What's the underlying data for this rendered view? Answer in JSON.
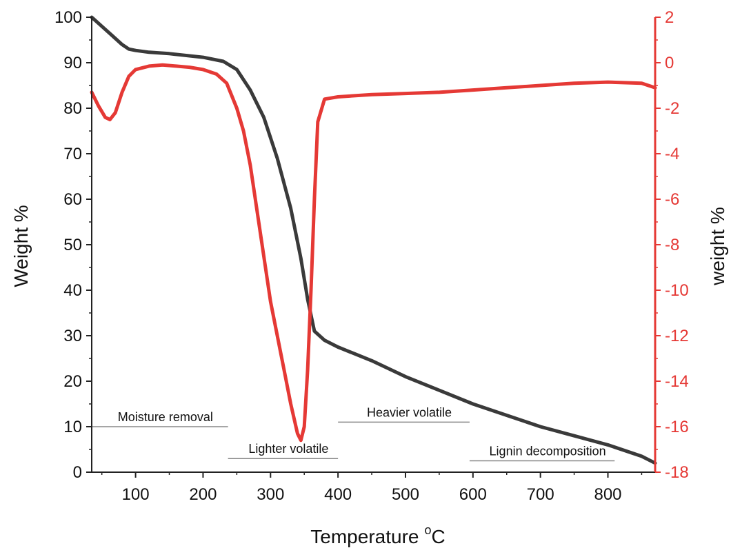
{
  "chart_data": {
    "type": "line",
    "xlabel": "Temperature",
    "xlabel_superscript": "o",
    "xlabel_unit": "C",
    "ylabel": "Weight %",
    "y2label": "weight %",
    "xlim": [
      35,
      870
    ],
    "ylim": [
      0,
      100
    ],
    "y2lim": [
      -18,
      2
    ],
    "xticks": [
      100,
      200,
      300,
      400,
      500,
      600,
      700,
      800
    ],
    "yticks": [
      0,
      10,
      20,
      30,
      40,
      50,
      60,
      70,
      80,
      90,
      100
    ],
    "y2ticks": [
      -18,
      -16,
      -14,
      -12,
      -10,
      -8,
      -6,
      -4,
      -2,
      0,
      2
    ],
    "grid": false,
    "colors": {
      "tg": "#3a3a3a",
      "dtg": "#e53935",
      "axis_right": "#e53935",
      "annotation_line": "#888888"
    },
    "series": [
      {
        "axis": "left",
        "x": [
          35,
          50,
          65,
          80,
          90,
          100,
          120,
          150,
          200,
          230,
          250,
          270,
          290,
          310,
          330,
          345,
          355,
          365,
          380,
          400,
          450,
          500,
          550,
          600,
          650,
          700,
          750,
          800,
          850,
          870
        ],
        "values": [
          100,
          98,
          96,
          94,
          93,
          92.7,
          92.3,
          92,
          91.2,
          90.3,
          88.5,
          84,
          78,
          69,
          58,
          47,
          38,
          31,
          29,
          27.5,
          24.5,
          21,
          18,
          15,
          12.5,
          10,
          8,
          6,
          3.5,
          2
        ]
      },
      {
        "axis": "right",
        "x": [
          35,
          45,
          55,
          62,
          70,
          80,
          90,
          100,
          120,
          140,
          160,
          180,
          200,
          220,
          235,
          250,
          260,
          270,
          280,
          290,
          300,
          310,
          320,
          330,
          340,
          345,
          350,
          355,
          360,
          365,
          370,
          380,
          400,
          450,
          500,
          550,
          600,
          650,
          700,
          750,
          800,
          850,
          870
        ],
        "values": [
          -1.3,
          -1.9,
          -2.4,
          -2.5,
          -2.2,
          -1.3,
          -0.6,
          -0.3,
          -0.15,
          -0.1,
          -0.15,
          -0.2,
          -0.3,
          -0.5,
          -0.9,
          -2.0,
          -3.0,
          -4.5,
          -6.5,
          -8.5,
          -10.5,
          -12.0,
          -13.5,
          -15.0,
          -16.3,
          -16.6,
          -16.0,
          -13.5,
          -10.0,
          -6.0,
          -2.6,
          -1.6,
          -1.5,
          -1.4,
          -1.35,
          -1.3,
          -1.2,
          -1.1,
          -1.0,
          -0.9,
          -0.85,
          -0.9,
          -1.1
        ]
      }
    ],
    "annotations": [
      {
        "text": "Moisture removal",
        "x1": 35,
        "x2": 237,
        "y": 10
      },
      {
        "text": "Lighter volatile",
        "x1": 237,
        "x2": 400,
        "y": 3
      },
      {
        "text": "Heavier volatile",
        "x1": 400,
        "x2": 595,
        "y": 11
      },
      {
        "text": "Lignin decomposition",
        "x1": 595,
        "x2": 810,
        "y": 2.5
      }
    ]
  }
}
